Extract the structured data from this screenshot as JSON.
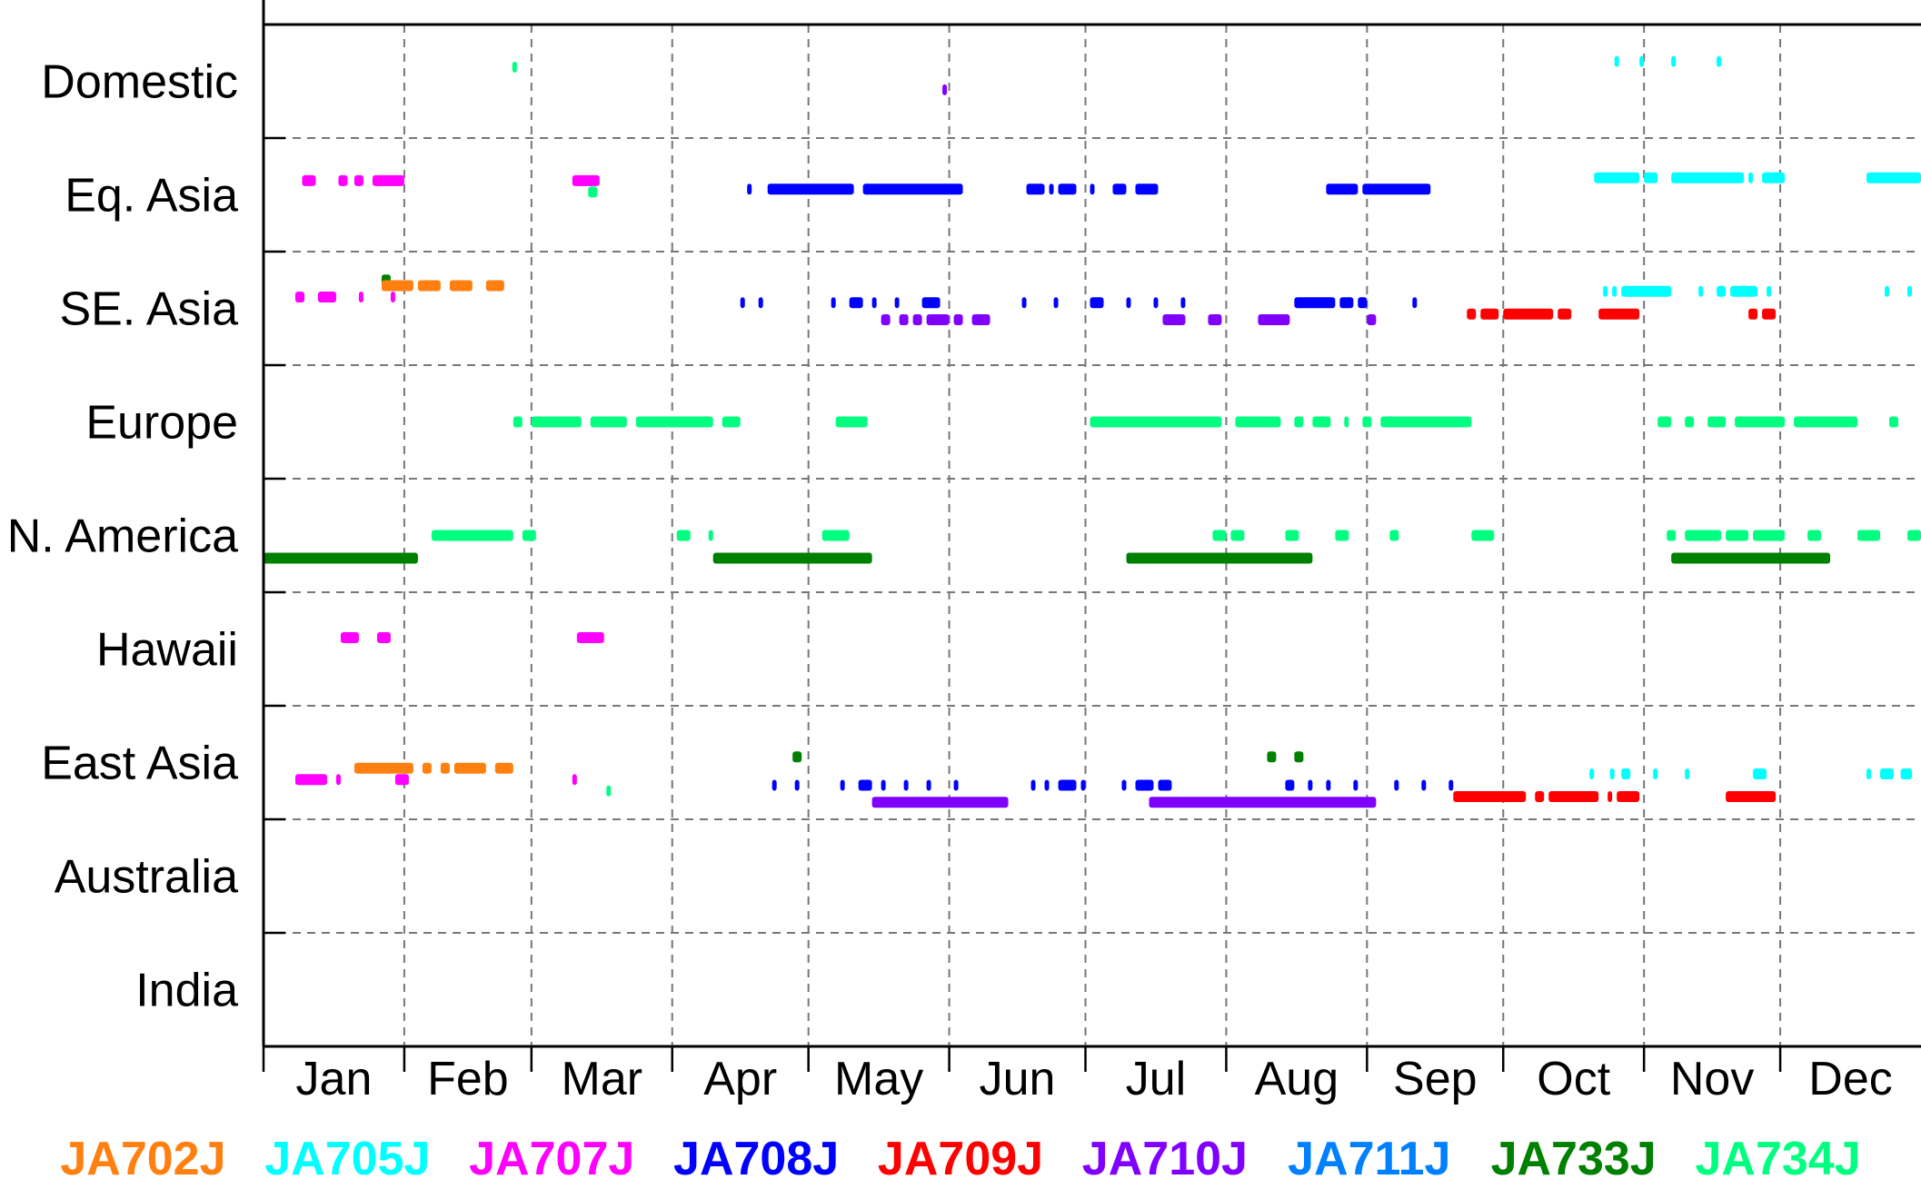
{
  "chart_data": {
    "type": "timeline",
    "rows": [
      "Domestic",
      "Eq. Asia",
      "SE. Asia",
      "Europe",
      "N. America",
      "Hawaii",
      "East Asia",
      "Australia",
      "India"
    ],
    "months": [
      "Jan",
      "Feb",
      "Mar",
      "Apr",
      "May",
      "Jun",
      "Jul",
      "Aug",
      "Sep",
      "Oct",
      "Nov",
      "Dec"
    ],
    "xlim": [
      0,
      365
    ],
    "grid": true,
    "aircraft": [
      {
        "name": "JA702J",
        "color": "#ff8010"
      },
      {
        "name": "JA705J",
        "color": "#00ffff"
      },
      {
        "name": "JA707J",
        "color": "#ff00ff"
      },
      {
        "name": "JA708J",
        "color": "#0000ff"
      },
      {
        "name": "JA709J",
        "color": "#ff0000"
      },
      {
        "name": "JA710J",
        "color": "#8000ff"
      },
      {
        "name": "JA711J",
        "color": "#0080ff"
      },
      {
        "name": "JA733J",
        "color": "#008000"
      },
      {
        "name": "JA734J",
        "color": "#00ff80"
      }
    ],
    "segments": [
      {
        "ac": "JA734J",
        "row": "Domestic",
        "lane": -0.25,
        "spans": [
          [
            54.8,
            55.8
          ]
        ]
      },
      {
        "ac": "JA710J",
        "row": "Domestic",
        "lane": 0.15,
        "spans": [
          [
            149.5,
            150.5
          ]
        ]
      },
      {
        "ac": "JA705J",
        "row": "Domestic",
        "lane": -0.35,
        "spans": [
          [
            297.5,
            298.5
          ],
          [
            303,
            304
          ],
          [
            310,
            311
          ],
          [
            320,
            321
          ]
        ]
      },
      {
        "ac": "JA707J",
        "row": "Eq. Asia",
        "lane": -0.25,
        "spans": [
          [
            8.5,
            11.5
          ],
          [
            16.5,
            18.5
          ],
          [
            20,
            22
          ],
          [
            24,
            31
          ]
        ]
      },
      {
        "ac": "JA707J",
        "row": "Eq. Asia",
        "lane": -0.25,
        "spans": [
          [
            68,
            74
          ]
        ]
      },
      {
        "ac": "JA734J",
        "row": "Eq. Asia",
        "lane": -0.05,
        "spans": [
          [
            71.5,
            73.5
          ]
        ]
      },
      {
        "ac": "JA708J",
        "row": "Eq. Asia",
        "lane": -0.1,
        "spans": [
          [
            106.5,
            107.5
          ],
          [
            111,
            130
          ],
          [
            132,
            154
          ],
          [
            168,
            172
          ],
          [
            173,
            174
          ],
          [
            175,
            179
          ],
          [
            182,
            183
          ],
          [
            187,
            190
          ],
          [
            192,
            197
          ],
          [
            234,
            241
          ],
          [
            242,
            257
          ]
        ]
      },
      {
        "ac": "JA705J",
        "row": "Eq. Asia",
        "lane": -0.3,
        "spans": [
          [
            293,
            303
          ],
          [
            304,
            307
          ],
          [
            310,
            326
          ],
          [
            327,
            328
          ],
          [
            330,
            335
          ],
          [
            353,
            365
          ]
        ]
      },
      {
        "ac": "JA733J",
        "row": "SE. Asia",
        "lane": -0.5,
        "spans": [
          [
            26,
            28
          ]
        ]
      },
      {
        "ac": "JA702J",
        "row": "SE. Asia",
        "lane": -0.4,
        "spans": [
          [
            26,
            33
          ],
          [
            34,
            39
          ],
          [
            41,
            46
          ],
          [
            49,
            53
          ]
        ]
      },
      {
        "ac": "JA707J",
        "row": "SE. Asia",
        "lane": -0.2,
        "spans": [
          [
            7,
            9
          ],
          [
            12,
            16
          ],
          [
            21,
            22
          ],
          [
            28,
            29
          ]
        ]
      },
      {
        "ac": "JA705J",
        "row": "SE. Asia",
        "lane": -0.3,
        "spans": [
          [
            295,
            296
          ],
          [
            297,
            298
          ],
          [
            299,
            310
          ],
          [
            316,
            317
          ],
          [
            320,
            322
          ],
          [
            323,
            329
          ],
          [
            331,
            332
          ],
          [
            357,
            358
          ],
          [
            362,
            363
          ]
        ]
      },
      {
        "ac": "JA708J",
        "row": "SE. Asia",
        "lane": -0.1,
        "spans": [
          [
            105,
            106
          ],
          [
            109,
            110
          ],
          [
            125,
            126
          ],
          [
            129,
            132
          ],
          [
            134,
            135
          ],
          [
            139,
            140
          ],
          [
            145,
            149
          ],
          [
            167,
            168
          ],
          [
            174,
            175
          ],
          [
            182,
            185
          ],
          [
            190,
            191
          ],
          [
            196,
            197
          ],
          [
            202,
            203
          ],
          [
            227,
            236
          ],
          [
            237,
            240
          ],
          [
            241,
            243
          ],
          [
            253,
            254
          ]
        ]
      },
      {
        "ac": "JA710J",
        "row": "SE. Asia",
        "lane": 0.2,
        "spans": [
          [
            136,
            138
          ],
          [
            140,
            142
          ],
          [
            143,
            145
          ],
          [
            146,
            151
          ],
          [
            152,
            154
          ],
          [
            156,
            160
          ]
        ]
      },
      {
        "ac": "JA710J",
        "row": "SE. Asia",
        "lane": 0.2,
        "spans": [
          [
            198,
            203
          ],
          [
            208,
            211
          ],
          [
            219,
            226
          ],
          [
            243,
            245
          ]
        ]
      },
      {
        "ac": "JA709J",
        "row": "SE. Asia",
        "lane": 0.1,
        "spans": [
          [
            265,
            267
          ],
          [
            268,
            272
          ],
          [
            273,
            284
          ],
          [
            285,
            288
          ],
          [
            294,
            303
          ],
          [
            327,
            329
          ],
          [
            330,
            333
          ]
        ]
      },
      {
        "ac": "JA734J",
        "row": "Europe",
        "lane": 0,
        "spans": [
          [
            55,
            57
          ],
          [
            59,
            70
          ],
          [
            72,
            80
          ],
          [
            82,
            99
          ],
          [
            101,
            105
          ],
          [
            126,
            133
          ],
          [
            182,
            211
          ],
          [
            214,
            224
          ],
          [
            227,
            229
          ],
          [
            231,
            235
          ],
          [
            238,
            239
          ],
          [
            242,
            244
          ],
          [
            246,
            266
          ],
          [
            307,
            310
          ],
          [
            313,
            315
          ],
          [
            318,
            322
          ],
          [
            324,
            335
          ],
          [
            337,
            351
          ],
          [
            358,
            360
          ]
        ]
      },
      {
        "ac": "JA734J",
        "row": "N. America",
        "lane": 0,
        "spans": [
          [
            37,
            55
          ],
          [
            57,
            60
          ],
          [
            91,
            94
          ],
          [
            98,
            99
          ],
          [
            123,
            129
          ],
          [
            209,
            212
          ],
          [
            213,
            216
          ],
          [
            225,
            228
          ],
          [
            236,
            239
          ],
          [
            248,
            250
          ],
          [
            266,
            271
          ],
          [
            309,
            311
          ],
          [
            313,
            321
          ],
          [
            322,
            327
          ],
          [
            328,
            335
          ],
          [
            340,
            343
          ],
          [
            351,
            356
          ],
          [
            362,
            365
          ]
        ]
      },
      {
        "ac": "JA733J",
        "row": "N. America",
        "lane": 0.4,
        "spans": [
          [
            0,
            34
          ],
          [
            99,
            134
          ],
          [
            190,
            231
          ],
          [
            310,
            345
          ]
        ]
      },
      {
        "ac": "JA707J",
        "row": "Hawaii",
        "lane": -0.2,
        "spans": [
          [
            17,
            21
          ],
          [
            25,
            28
          ],
          [
            69,
            75
          ]
        ]
      },
      {
        "ac": "JA733J",
        "row": "East Asia",
        "lane": -0.1,
        "spans": [
          [
            116.5,
            118.5
          ],
          [
            221,
            223
          ],
          [
            227,
            229
          ]
        ]
      },
      {
        "ac": "JA702J",
        "row": "East Asia",
        "lane": 0.1,
        "spans": [
          [
            20,
            33
          ],
          [
            35,
            37
          ],
          [
            39,
            41
          ],
          [
            42,
            49
          ],
          [
            51,
            55
          ]
        ]
      },
      {
        "ac": "JA705J",
        "row": "East Asia",
        "lane": 0.2,
        "spans": [
          [
            292,
            293
          ],
          [
            296.5,
            297.5
          ],
          [
            299,
            301
          ],
          [
            306,
            307
          ],
          [
            313,
            314
          ],
          [
            328,
            331
          ],
          [
            353,
            354
          ],
          [
            356,
            359
          ],
          [
            360.5,
            363
          ]
        ]
      },
      {
        "ac": "JA707J",
        "row": "East Asia",
        "lane": 0.3,
        "spans": [
          [
            7,
            14
          ],
          [
            16,
            17
          ],
          [
            29,
            32
          ],
          [
            68,
            69
          ]
        ]
      },
      {
        "ac": "JA734J",
        "row": "East Asia",
        "lane": 0.5,
        "spans": [
          [
            75.5,
            76.5
          ]
        ]
      },
      {
        "ac": "JA708J",
        "row": "East Asia",
        "lane": 0.4,
        "spans": [
          [
            112,
            113
          ],
          [
            117,
            118
          ],
          [
            127,
            128
          ],
          [
            131,
            134
          ],
          [
            136,
            137
          ],
          [
            141,
            142
          ],
          [
            146,
            147
          ],
          [
            152,
            153
          ],
          [
            169,
            170
          ],
          [
            172,
            173
          ],
          [
            175,
            179
          ],
          [
            180,
            181
          ],
          [
            189,
            190
          ],
          [
            192,
            196
          ],
          [
            197,
            200
          ],
          [
            225,
            227
          ],
          [
            230,
            231
          ],
          [
            234,
            235
          ],
          [
            240,
            241
          ],
          [
            249,
            250
          ],
          [
            255,
            256
          ],
          [
            261,
            262
          ]
        ]
      },
      {
        "ac": "JA709J",
        "row": "East Asia",
        "lane": 0.6,
        "spans": [
          [
            262,
            278
          ],
          [
            280,
            282
          ],
          [
            283,
            294
          ],
          [
            296,
            297
          ],
          [
            298,
            303
          ],
          [
            322,
            333
          ]
        ]
      },
      {
        "ac": "JA710J",
        "row": "East Asia",
        "lane": 0.7,
        "spans": [
          [
            134,
            164
          ],
          [
            195,
            245
          ]
        ]
      }
    ]
  }
}
